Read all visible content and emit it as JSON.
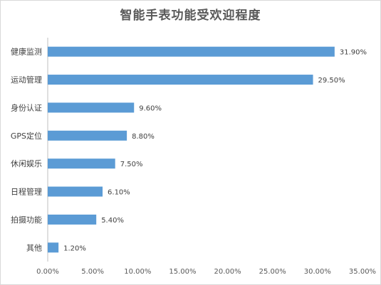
{
  "chart_data": {
    "type": "bar",
    "orientation": "horizontal",
    "title": "智能手表功能受欢迎程度",
    "xlabel": "",
    "ylabel": "",
    "categories": [
      "健康监测",
      "运动管理",
      "身份认证",
      "GPS定位",
      "休闲娱乐",
      "日程管理",
      "拍摄功能",
      "其他"
    ],
    "values": [
      31.9,
      29.5,
      9.6,
      8.8,
      7.5,
      6.1,
      5.4,
      1.2
    ],
    "value_labels": [
      "31.90%",
      "29.50%",
      "9.60%",
      "8.80%",
      "7.50%",
      "6.10%",
      "5.40%",
      "1.20%"
    ],
    "xlim": [
      0,
      35
    ],
    "xticks": [
      0,
      5,
      10,
      15,
      20,
      25,
      30,
      35
    ],
    "xtick_labels": [
      "0.00%",
      "5.00%",
      "10.00%",
      "15.00%",
      "20.00%",
      "25.00%",
      "30.00%",
      "35.00%"
    ],
    "bar_color": "#5b9bd5",
    "grid": false,
    "legend": "none"
  }
}
